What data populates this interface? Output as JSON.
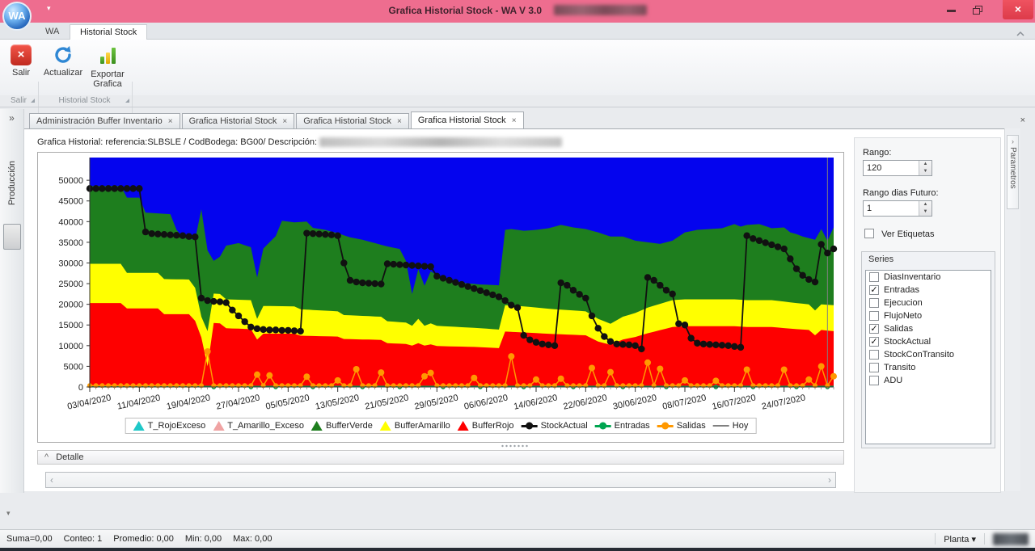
{
  "window": {
    "title": "Grafica Historial Stock - WA V 3.0",
    "logo": "WA"
  },
  "icons": {
    "dropdown": "▾",
    "close": "×",
    "chevron_double_right": "»",
    "spin_up": "▲",
    "spin_down": "▼",
    "scroll_left": "‹",
    "scroll_right": "›",
    "caret_up": "^",
    "chevron_right_small": "›",
    "check": "✓"
  },
  "ribbon": {
    "tabs": [
      "WA",
      "Historial Stock"
    ],
    "buttons": [
      {
        "label": "Salir"
      },
      {
        "label": "Actualizar"
      },
      {
        "label": "Exportar Grafica"
      }
    ],
    "groups": [
      "Salir",
      "Historial Stock"
    ]
  },
  "sidebar": {
    "item": "Producción"
  },
  "doc_tabs": [
    {
      "label": "Administración Buffer Inventario",
      "active": false
    },
    {
      "label": "Grafica Historial Stock",
      "active": false
    },
    {
      "label": "Grafica Historial Stock",
      "active": false
    },
    {
      "label": "Grafica Historial Stock",
      "active": true
    }
  ],
  "content": {
    "header": "Grafica Historial: referencia:SLBSLE / CodBodega: BG00/ Descripción:"
  },
  "detalle": {
    "title": "Detalle"
  },
  "right_panel": {
    "rango_label": "Rango:",
    "rango_value": "120",
    "rango_futuro_label": "Rango dias Futuro:",
    "rango_futuro_value": "1",
    "ver_etiquetas_label": "Ver Etiquetas",
    "ver_etiquetas_checked": false,
    "series_title": "Series",
    "series": [
      {
        "label": "DiasInventario",
        "checked": false
      },
      {
        "label": "Entradas",
        "checked": true
      },
      {
        "label": "Ejecucion",
        "checked": false
      },
      {
        "label": "FlujoNeto",
        "checked": false
      },
      {
        "label": "Salidas",
        "checked": true
      },
      {
        "label": "StockActual",
        "checked": true
      },
      {
        "label": "StockConTransito",
        "checked": false
      },
      {
        "label": "Transito",
        "checked": false
      },
      {
        "label": "ADU",
        "checked": false
      }
    ]
  },
  "parametros_tab": "Parametros",
  "status_bar": {
    "items": [
      "Suma=0,00",
      "Conteo: 1",
      "Promedio: 0,00",
      "Min: 0,00",
      "Max: 0,00"
    ],
    "planta_label": "Planta"
  },
  "chart_data": {
    "type": "area",
    "title": "",
    "xlabel": "",
    "ylabel": "",
    "days_total": 120,
    "ylim": [
      0,
      55500
    ],
    "y_ticks": [
      0,
      5000,
      10000,
      15000,
      20000,
      25000,
      30000,
      35000,
      40000,
      45000,
      50000
    ],
    "x_ticks": [
      [
        0,
        "03/04/2020"
      ],
      [
        8,
        "11/04/2020"
      ],
      [
        16,
        "19/04/2020"
      ],
      [
        24,
        "27/04/2020"
      ],
      [
        32,
        "05/05/2020"
      ],
      [
        40,
        "13/05/2020"
      ],
      [
        48,
        "21/05/2020"
      ],
      [
        56,
        "29/05/2020"
      ],
      [
        64,
        "06/06/2020"
      ],
      [
        72,
        "14/06/2020"
      ],
      [
        80,
        "22/06/2020"
      ],
      [
        88,
        "30/06/2020"
      ],
      [
        96,
        "08/07/2020"
      ],
      [
        104,
        "16/07/2020"
      ],
      [
        112,
        "24/07/2020"
      ]
    ],
    "colors": {
      "excess_zone": "#0404ee",
      "buffer_verde": "#1e7e1e",
      "buffer_amarillo": "#ffff00",
      "buffer_rojo": "#fe0000",
      "stock_actual": "#111111",
      "entradas": "#00a550",
      "salidas": "#ff9800",
      "hoy": "#808080",
      "t_rojo_exceso": "#1fc8c8",
      "t_amarillo_exceso": "#f0a3a3"
    },
    "bands": {
      "buffer_rojo_top": [
        [
          0,
          20300
        ],
        [
          5,
          20300
        ],
        [
          6,
          19000
        ],
        [
          11,
          19000
        ],
        [
          12,
          17600
        ],
        [
          16,
          17600
        ],
        [
          17,
          16000
        ],
        [
          18,
          12000
        ],
        [
          19,
          5000
        ],
        [
          20,
          15500
        ],
        [
          21,
          15400
        ],
        [
          22,
          14200
        ],
        [
          26,
          14000
        ],
        [
          27,
          11500
        ],
        [
          28,
          12900
        ],
        [
          33,
          12900
        ],
        [
          34,
          12400
        ],
        [
          40,
          12200
        ],
        [
          41,
          11600
        ],
        [
          47,
          11400
        ],
        [
          48,
          10600
        ],
        [
          51,
          10400
        ],
        [
          52,
          10000
        ],
        [
          53,
          10600
        ],
        [
          54,
          10000
        ],
        [
          55,
          10300
        ],
        [
          56,
          9900
        ],
        [
          62,
          9700
        ],
        [
          66,
          9400
        ],
        [
          67,
          13400
        ],
        [
          70,
          13200
        ],
        [
          75,
          12800
        ],
        [
          80,
          12500
        ],
        [
          82,
          11000
        ],
        [
          84,
          10200
        ],
        [
          86,
          11500
        ],
        [
          88,
          12100
        ],
        [
          90,
          13000
        ],
        [
          94,
          14500
        ],
        [
          96,
          14700
        ],
        [
          104,
          14700
        ],
        [
          106,
          14500
        ],
        [
          110,
          14500
        ],
        [
          114,
          14000
        ],
        [
          116,
          13800
        ],
        [
          117,
          12500
        ],
        [
          118,
          13800
        ],
        [
          120,
          13500
        ]
      ],
      "buffer_amarillo_top": [
        [
          0,
          29800
        ],
        [
          5,
          29800
        ],
        [
          6,
          27600
        ],
        [
          11,
          27600
        ],
        [
          12,
          26100
        ],
        [
          16,
          26000
        ],
        [
          17,
          24000
        ],
        [
          18,
          17000
        ],
        [
          19,
          13500
        ],
        [
          20,
          22600
        ],
        [
          21,
          22500
        ],
        [
          22,
          21200
        ],
        [
          26,
          21000
        ],
        [
          27,
          16500
        ],
        [
          28,
          19600
        ],
        [
          33,
          19500
        ],
        [
          34,
          18800
        ],
        [
          40,
          18300
        ],
        [
          41,
          17400
        ],
        [
          47,
          17000
        ],
        [
          48,
          15900
        ],
        [
          51,
          15600
        ],
        [
          52,
          14800
        ],
        [
          53,
          16500
        ],
        [
          54,
          14800
        ],
        [
          55,
          15400
        ],
        [
          56,
          14800
        ],
        [
          62,
          14300
        ],
        [
          66,
          13900
        ],
        [
          67,
          19800
        ],
        [
          70,
          19500
        ],
        [
          75,
          18800
        ],
        [
          80,
          18300
        ],
        [
          82,
          16500
        ],
        [
          84,
          15300
        ],
        [
          86,
          17000
        ],
        [
          88,
          17900
        ],
        [
          90,
          19200
        ],
        [
          94,
          21000
        ],
        [
          96,
          21200
        ],
        [
          104,
          21200
        ],
        [
          106,
          21000
        ],
        [
          110,
          21000
        ],
        [
          114,
          20300
        ],
        [
          116,
          20000
        ],
        [
          117,
          18500
        ],
        [
          118,
          20000
        ],
        [
          120,
          19800
        ]
      ],
      "buffer_verde_top": [
        [
          0,
          48600
        ],
        [
          5,
          48600
        ],
        [
          6,
          45800
        ],
        [
          8,
          45800
        ],
        [
          9,
          42200
        ],
        [
          13,
          41800
        ],
        [
          14,
          38000
        ],
        [
          15,
          36200
        ],
        [
          17,
          35600
        ],
        [
          18,
          43000
        ],
        [
          19,
          33000
        ],
        [
          20,
          30500
        ],
        [
          21,
          31500
        ],
        [
          22,
          34200
        ],
        [
          24,
          34800
        ],
        [
          26,
          33800
        ],
        [
          27,
          26500
        ],
        [
          28,
          33500
        ],
        [
          30,
          36500
        ],
        [
          31,
          40200
        ],
        [
          33,
          39800
        ],
        [
          35,
          40000
        ],
        [
          36,
          38500
        ],
        [
          38,
          38000
        ],
        [
          40,
          37200
        ],
        [
          42,
          36200
        ],
        [
          44,
          35600
        ],
        [
          46,
          34800
        ],
        [
          48,
          34000
        ],
        [
          50,
          33400
        ],
        [
          51,
          30500
        ],
        [
          52,
          22500
        ],
        [
          53,
          28500
        ],
        [
          54,
          24500
        ],
        [
          55,
          28000
        ],
        [
          56,
          27000
        ],
        [
          58,
          25800
        ],
        [
          60,
          25200
        ],
        [
          63,
          24800
        ],
        [
          66,
          24600
        ],
        [
          67,
          38000
        ],
        [
          68,
          38200
        ],
        [
          70,
          37800
        ],
        [
          72,
          38000
        ],
        [
          74,
          38400
        ],
        [
          76,
          39200
        ],
        [
          78,
          38600
        ],
        [
          80,
          38200
        ],
        [
          82,
          37400
        ],
        [
          84,
          36400
        ],
        [
          86,
          36400
        ],
        [
          88,
          35400
        ],
        [
          90,
          35000
        ],
        [
          92,
          34600
        ],
        [
          94,
          35400
        ],
        [
          96,
          37400
        ],
        [
          98,
          38000
        ],
        [
          100,
          38200
        ],
        [
          102,
          38400
        ],
        [
          104,
          39400
        ],
        [
          105,
          38800
        ],
        [
          106,
          39200
        ],
        [
          108,
          39400
        ],
        [
          110,
          38400
        ],
        [
          112,
          38600
        ],
        [
          113,
          37400
        ],
        [
          114,
          37000
        ],
        [
          115,
          36400
        ],
        [
          116,
          36000
        ],
        [
          117,
          35600
        ],
        [
          118,
          38200
        ],
        [
          119,
          35400
        ],
        [
          120,
          38600
        ]
      ]
    },
    "series": {
      "stock_actual_values": [
        48000,
        48000,
        48000,
        48000,
        48000,
        48000,
        48000,
        48000,
        48000,
        37500,
        37100,
        37000,
        36900,
        36800,
        36700,
        36600,
        36400,
        36300,
        21500,
        20900,
        20700,
        20600,
        20400,
        18600,
        17200,
        15800,
        14500,
        14100,
        13900,
        13800,
        13800,
        13700,
        13700,
        13600,
        13500,
        37200,
        37100,
        37000,
        36900,
        36800,
        36600,
        30000,
        25800,
        25400,
        25200,
        25100,
        25000,
        24900,
        29800,
        29700,
        29600,
        29500,
        29400,
        29300,
        29200,
        29100,
        26800,
        26300,
        25800,
        25300,
        24800,
        24300,
        23800,
        23300,
        22800,
        22300,
        21800,
        20900,
        19800,
        19200,
        12500,
        11400,
        10800,
        10400,
        10200,
        10000,
        25200,
        24600,
        23400,
        22400,
        21500,
        17200,
        14200,
        12200,
        11000,
        10400,
        10300,
        10200,
        10000,
        9200,
        26500,
        25800,
        24600,
        23400,
        22500,
        15300,
        15000,
        11800,
        10600,
        10400,
        10300,
        10200,
        10100,
        10000,
        9800,
        9600,
        36600,
        35900,
        35400,
        34900,
        34400,
        33900,
        33400,
        31000,
        28600,
        27000,
        26000,
        25400,
        34500,
        32400,
        33400
      ],
      "salidas_baseline": 350,
      "salidas_spikes": [
        [
          19,
          8600
        ],
        [
          27,
          3000
        ],
        [
          29,
          2800
        ],
        [
          35,
          2500
        ],
        [
          40,
          1600
        ],
        [
          43,
          4300
        ],
        [
          47,
          3500
        ],
        [
          54,
          2600
        ],
        [
          55,
          3400
        ],
        [
          62,
          2200
        ],
        [
          68,
          7400
        ],
        [
          72,
          1800
        ],
        [
          76,
          2000
        ],
        [
          81,
          4600
        ],
        [
          84,
          3600
        ],
        [
          90,
          5900
        ],
        [
          92,
          4400
        ],
        [
          96,
          1600
        ],
        [
          101,
          1500
        ],
        [
          106,
          4200
        ],
        [
          112,
          4200
        ],
        [
          116,
          1800
        ],
        [
          118,
          5000
        ],
        [
          120,
          2600
        ]
      ],
      "entradas_level": 150,
      "entradas_marker_days": [
        20,
        26,
        30,
        36,
        44,
        50,
        57,
        63,
        70,
        78,
        86,
        93,
        101,
        107,
        114,
        119
      ],
      "hoy_day": 119
    },
    "legend": [
      {
        "label": "T_RojoExceso",
        "type": "triangle",
        "color": "#1fc8c8"
      },
      {
        "label": "T_Amarillo_Exceso",
        "type": "triangle",
        "color": "#f0a3a3"
      },
      {
        "label": "BufferVerde",
        "type": "triangle",
        "color": "#1e7e1e"
      },
      {
        "label": "BufferAmarillo",
        "type": "triangle",
        "color": "#ffff00"
      },
      {
        "label": "BufferRojo",
        "type": "triangle",
        "color": "#fe0000"
      },
      {
        "label": "StockActual",
        "type": "line-dot",
        "color": "#111111"
      },
      {
        "label": "Entradas",
        "type": "line-dot",
        "color": "#00a550"
      },
      {
        "label": "Salidas",
        "type": "line-dot",
        "color": "#ff9800"
      },
      {
        "label": "Hoy",
        "type": "line",
        "color": "#808080"
      }
    ],
    "legend_position": "bottom"
  }
}
